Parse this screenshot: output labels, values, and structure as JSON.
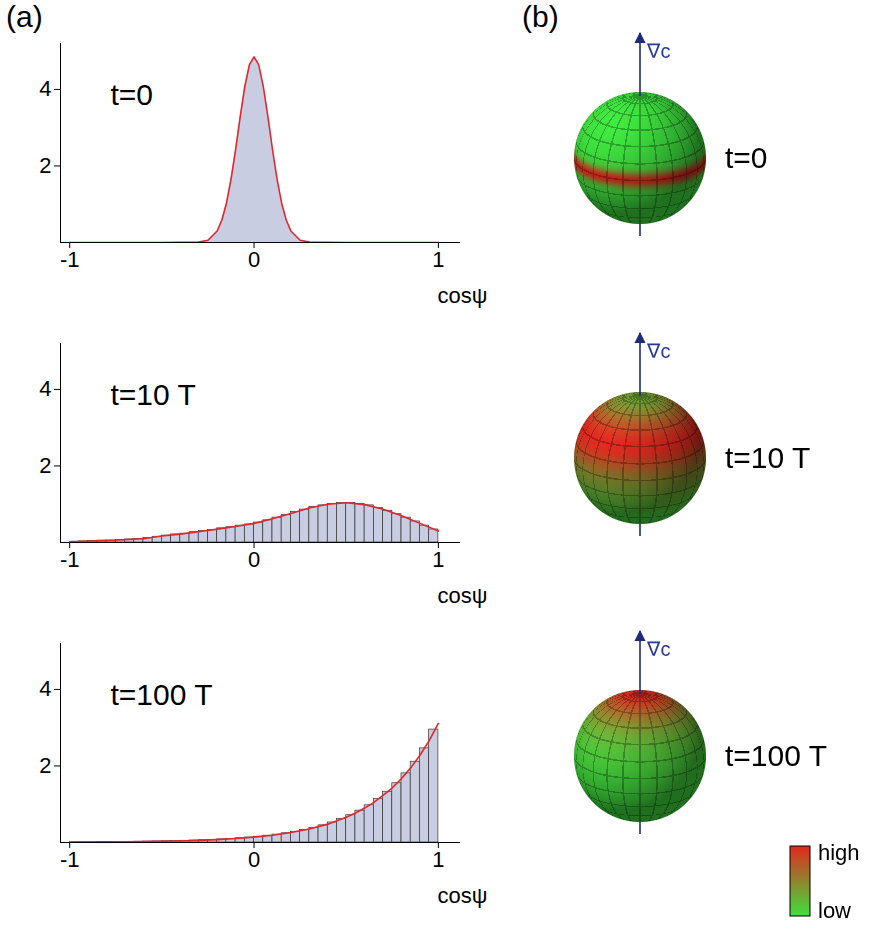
{
  "panel_labels": {
    "a": "(a)",
    "b": "(b)"
  },
  "chart_data": [
    {
      "type": "area",
      "title": "t=0",
      "xlabel": "cosψ",
      "xlim": [
        -1.05,
        1.12
      ],
      "xticks": [
        -1,
        0,
        1
      ],
      "ylim": [
        0,
        5.2
      ],
      "yticks": [
        2,
        4
      ],
      "color": "#c9cde2",
      "curve": {
        "color": "#e3262b",
        "x": [
          -1,
          -0.5,
          -0.3,
          -0.25,
          -0.2,
          -0.175,
          -0.15,
          -0.125,
          -0.1,
          -0.075,
          -0.05,
          -0.025,
          0,
          0.025,
          0.05,
          0.075,
          0.1,
          0.125,
          0.15,
          0.175,
          0.2,
          0.25,
          0.3,
          0.5,
          1
        ],
        "values": [
          0,
          0,
          0.01,
          0.06,
          0.3,
          0.58,
          1.02,
          1.65,
          2.43,
          3.29,
          4.08,
          4.65,
          4.85,
          4.65,
          4.08,
          3.29,
          2.43,
          1.65,
          1.02,
          0.58,
          0.3,
          0.06,
          0.01,
          0,
          0
        ]
      }
    },
    {
      "type": "histogram",
      "title": "t=10 T",
      "xlabel": "cosψ",
      "xlim": [
        -1.05,
        1.12
      ],
      "xticks": [
        -1,
        0,
        1
      ],
      "ylim": [
        0,
        5.2
      ],
      "yticks": [
        2,
        4
      ],
      "color": "#c9cde2",
      "bins": [
        -1,
        -0.95,
        -0.9,
        -0.85,
        -0.8,
        -0.75,
        -0.7,
        -0.65,
        -0.6,
        -0.55,
        -0.5,
        -0.45,
        -0.4,
        -0.35,
        -0.3,
        -0.25,
        -0.2,
        -0.15,
        -0.1,
        -0.05,
        0,
        0.05,
        0.1,
        0.15,
        0.2,
        0.25,
        0.3,
        0.35,
        0.4,
        0.45,
        0.5,
        0.55,
        0.6,
        0.65,
        0.7,
        0.75,
        0.8,
        0.85,
        0.9,
        0.95,
        1
      ],
      "counts": [
        0.02,
        0.03,
        0.04,
        0.05,
        0.05,
        0.07,
        0.08,
        0.09,
        0.12,
        0.15,
        0.18,
        0.21,
        0.23,
        0.27,
        0.3,
        0.33,
        0.37,
        0.4,
        0.44,
        0.47,
        0.52,
        0.58,
        0.65,
        0.72,
        0.8,
        0.86,
        0.93,
        0.97,
        1.01,
        1.03,
        1.03,
        1.01,
        0.97,
        0.9,
        0.83,
        0.74,
        0.65,
        0.55,
        0.44,
        0.34
      ],
      "curve": {
        "color": "#e3262b",
        "x": [
          -1,
          -0.9,
          -0.8,
          -0.7,
          -0.6,
          -0.5,
          -0.4,
          -0.3,
          -0.2,
          -0.1,
          0,
          0.1,
          0.2,
          0.3,
          0.4,
          0.5,
          0.6,
          0.7,
          0.8,
          0.9,
          1
        ],
        "values": [
          0.02,
          0.03,
          0.05,
          0.07,
          0.1,
          0.17,
          0.22,
          0.28,
          0.35,
          0.42,
          0.5,
          0.62,
          0.76,
          0.9,
          1.0,
          1.04,
          0.99,
          0.87,
          0.7,
          0.5,
          0.3
        ]
      }
    },
    {
      "type": "histogram",
      "title": "t=100 T",
      "xlabel": "cosψ",
      "xlim": [
        -1.05,
        1.12
      ],
      "xticks": [
        -1,
        0,
        1
      ],
      "ylim": [
        0,
        5.2
      ],
      "yticks": [
        2,
        4
      ],
      "color": "#c9cde2",
      "bins": [
        -1,
        -0.95,
        -0.9,
        -0.85,
        -0.8,
        -0.75,
        -0.7,
        -0.65,
        -0.6,
        -0.55,
        -0.5,
        -0.45,
        -0.4,
        -0.35,
        -0.3,
        -0.25,
        -0.2,
        -0.15,
        -0.1,
        -0.05,
        0,
        0.05,
        0.1,
        0.15,
        0.2,
        0.25,
        0.3,
        0.35,
        0.4,
        0.45,
        0.5,
        0.55,
        0.6,
        0.65,
        0.7,
        0.75,
        0.8,
        0.85,
        0.9,
        0.95,
        1
      ],
      "counts": [
        0.007,
        0.008,
        0.009,
        0.011,
        0.013,
        0.015,
        0.017,
        0.02,
        0.024,
        0.028,
        0.032,
        0.038,
        0.044,
        0.051,
        0.06,
        0.07,
        0.081,
        0.095,
        0.111,
        0.13,
        0.151,
        0.177,
        0.206,
        0.241,
        0.281,
        0.328,
        0.383,
        0.448,
        0.523,
        0.611,
        0.713,
        0.832,
        0.972,
        1.135,
        1.326,
        1.548,
        1.807,
        2.11,
        2.46,
        2.95
      ],
      "curve": {
        "color": "#e3262b",
        "x": [
          -1,
          -0.9,
          -0.8,
          -0.7,
          -0.6,
          -0.5,
          -0.4,
          -0.3,
          -0.2,
          -0.1,
          0,
          0.1,
          0.2,
          0.3,
          0.4,
          0.5,
          0.55,
          0.6,
          0.65,
          0.7,
          0.75,
          0.8,
          0.85,
          0.9,
          0.95,
          1
        ],
        "values": [
          0.0063,
          0.0086,
          0.012,
          0.016,
          0.022,
          0.03,
          0.04,
          0.055,
          0.075,
          0.103,
          0.14,
          0.19,
          0.26,
          0.355,
          0.48,
          0.66,
          0.77,
          0.9,
          1.05,
          1.23,
          1.43,
          1.67,
          1.95,
          2.28,
          2.66,
          3.11
        ]
      }
    }
  ],
  "diagram": {
    "arrow_label": "∇c",
    "spheres": [
      {
        "label": "t=0"
      },
      {
        "label": "t=10 T"
      },
      {
        "label": "t=100 T"
      }
    ],
    "colorbar": {
      "labels": [
        "high",
        "low"
      ],
      "colors": [
        "#e3281f",
        "#3ee03e"
      ]
    }
  }
}
